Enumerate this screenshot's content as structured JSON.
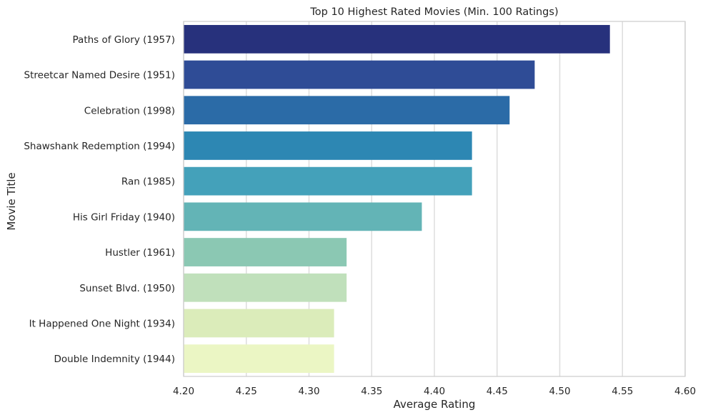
{
  "chart_data": {
    "type": "bar",
    "orientation": "horizontal",
    "title": "Top 10 Highest Rated Movies (Min. 100 Ratings)",
    "xlabel": "Average Rating",
    "ylabel": "Movie Title",
    "xlim": [
      4.2,
      4.6
    ],
    "xticks": [
      "4.20",
      "4.25",
      "4.30",
      "4.35",
      "4.40",
      "4.45",
      "4.50",
      "4.55",
      "4.60"
    ],
    "grid": "vertical",
    "categories": [
      "Paths of Glory (1957)",
      "Streetcar Named Desire (1951)",
      "Celebration (1998)",
      "Shawshank Redemption (1994)",
      "Ran (1985)",
      "His Girl Friday (1940)",
      "Hustler (1961)",
      "Sunset Blvd. (1950)",
      "It Happened One Night (1934)",
      "Double Indemnity (1944)"
    ],
    "values": [
      4.54,
      4.48,
      4.46,
      4.43,
      4.43,
      4.39,
      4.33,
      4.33,
      4.32,
      4.32
    ],
    "colors": [
      "#27317c",
      "#2f4c96",
      "#2b6ba7",
      "#2d87b3",
      "#44a1ba",
      "#63b4b6",
      "#8bc8b3",
      "#c0e0bb",
      "#dbecba",
      "#ebf6c4"
    ]
  }
}
